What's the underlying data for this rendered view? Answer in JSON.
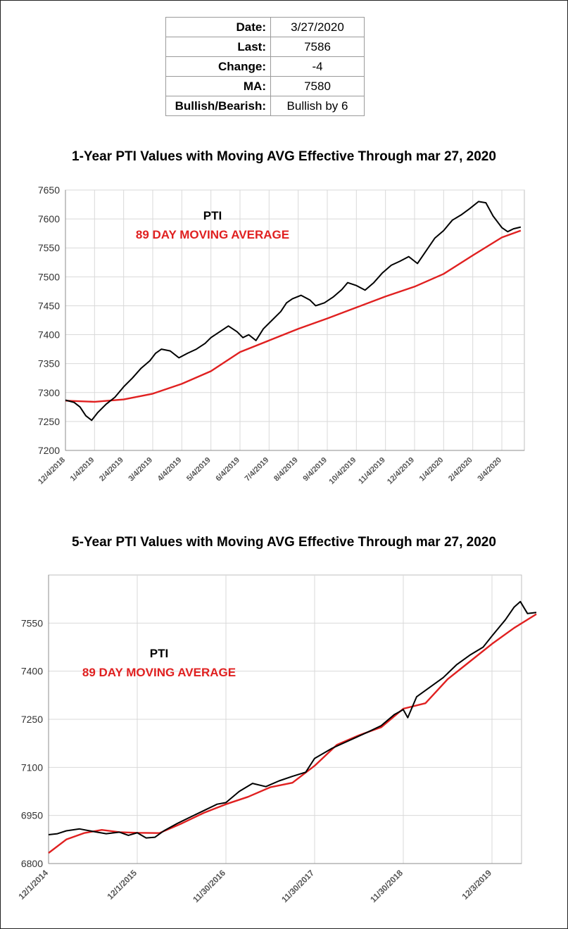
{
  "summary": [
    {
      "label": "Date:",
      "value": "3/27/2020"
    },
    {
      "label": "Last:",
      "value": "7586"
    },
    {
      "label": "Change:",
      "value": "-4"
    },
    {
      "label": "MA:",
      "value": "7580"
    },
    {
      "label": "Bullish/Bearish:",
      "value": "Bullish by 6"
    }
  ],
  "chart_data": [
    {
      "type": "line",
      "title": "1-Year PTI Values with Moving AVG Effective Through mar 27, 2020",
      "ylim": [
        7200,
        7650
      ],
      "y_ticks": [
        7200,
        7250,
        7300,
        7350,
        7400,
        7450,
        7500,
        7550,
        7600,
        7650
      ],
      "x_tick_labels": [
        "12/4/2018",
        "1/4/2019",
        "2/4/2019",
        "3/4/2019",
        "4/4/2019",
        "5/4/2019",
        "6/4/2019",
        "7/4/2019",
        "8/4/2019",
        "9/4/2019",
        "10/4/2019",
        "11/4/2019",
        "12/4/2019",
        "1/4/2020",
        "2/4/2020",
        "3/4/2020"
      ],
      "grid": true,
      "legend": [
        "PTI",
        "89 DAY MOVING AVERAGE"
      ],
      "legend_colors": [
        "#000000",
        "#e02020"
      ],
      "series": [
        {
          "name": "PTI",
          "color": "#000000",
          "points": [
            [
              0,
              7287
            ],
            [
              0.3,
              7283
            ],
            [
              0.5,
              7275
            ],
            [
              0.7,
              7260
            ],
            [
              0.9,
              7252
            ],
            [
              1.1,
              7265
            ],
            [
              1.4,
              7280
            ],
            [
              1.7,
              7292
            ],
            [
              2.0,
              7310
            ],
            [
              2.3,
              7325
            ],
            [
              2.6,
              7342
            ],
            [
              2.9,
              7355
            ],
            [
              3.1,
              7368
            ],
            [
              3.3,
              7375
            ],
            [
              3.6,
              7372
            ],
            [
              3.9,
              7360
            ],
            [
              4.2,
              7368
            ],
            [
              4.5,
              7375
            ],
            [
              4.8,
              7385
            ],
            [
              5.0,
              7395
            ],
            [
              5.3,
              7405
            ],
            [
              5.6,
              7415
            ],
            [
              5.9,
              7405
            ],
            [
              6.1,
              7395
            ],
            [
              6.3,
              7400
            ],
            [
              6.55,
              7390
            ],
            [
              6.8,
              7410
            ],
            [
              7.1,
              7425
            ],
            [
              7.4,
              7440
            ],
            [
              7.6,
              7455
            ],
            [
              7.8,
              7462
            ],
            [
              8.1,
              7468
            ],
            [
              8.4,
              7460
            ],
            [
              8.6,
              7450
            ],
            [
              8.9,
              7455
            ],
            [
              9.2,
              7465
            ],
            [
              9.5,
              7478
            ],
            [
              9.7,
              7490
            ],
            [
              10.0,
              7485
            ],
            [
              10.3,
              7477
            ],
            [
              10.6,
              7490
            ],
            [
              10.9,
              7507
            ],
            [
              11.2,
              7520
            ],
            [
              11.5,
              7527
            ],
            [
              11.8,
              7535
            ],
            [
              12.1,
              7523
            ],
            [
              12.4,
              7545
            ],
            [
              12.7,
              7567
            ],
            [
              13.0,
              7580
            ],
            [
              13.3,
              7598
            ],
            [
              13.6,
              7607
            ],
            [
              13.9,
              7618
            ],
            [
              14.2,
              7630
            ],
            [
              14.45,
              7628
            ],
            [
              14.7,
              7605
            ],
            [
              15.0,
              7585
            ],
            [
              15.2,
              7578
            ],
            [
              15.4,
              7583
            ],
            [
              15.65,
              7586
            ]
          ]
        },
        {
          "name": "89 DAY MOVING AVERAGE",
          "color": "#e02020",
          "points": [
            [
              0,
              7286
            ],
            [
              1,
              7284
            ],
            [
              2,
              7288
            ],
            [
              3,
              7298
            ],
            [
              4,
              7315
            ],
            [
              5,
              7337
            ],
            [
              6,
              7370
            ],
            [
              7,
              7390
            ],
            [
              8,
              7410
            ],
            [
              9,
              7428
            ],
            [
              10,
              7447
            ],
            [
              11,
              7466
            ],
            [
              12,
              7483
            ],
            [
              13,
              7505
            ],
            [
              14,
              7537
            ],
            [
              15,
              7568
            ],
            [
              15.65,
              7580
            ]
          ]
        }
      ]
    },
    {
      "type": "line",
      "title": "5-Year PTI Values with Moving AVG Effective Through mar 27, 2020",
      "ylim": [
        6800,
        7700
      ],
      "y_ticks": [
        6800,
        6950,
        7100,
        7250,
        7400,
        7550
      ],
      "x_tick_labels": [
        "12/1/2014",
        "12/1/2015",
        "11/30/2016",
        "11/30/2017",
        "11/30/2018",
        "12/3/2019"
      ],
      "grid": true,
      "legend": [
        "PTI",
        "89 DAY MOVING AVERAGE"
      ],
      "legend_colors": [
        "#000000",
        "#e02020"
      ],
      "series": [
        {
          "name": "PTI",
          "color": "#000000",
          "points": [
            [
              0,
              6890
            ],
            [
              0.1,
              6893
            ],
            [
              0.2,
              6902
            ],
            [
              0.35,
              6908
            ],
            [
              0.5,
              6900
            ],
            [
              0.65,
              6893
            ],
            [
              0.8,
              6898
            ],
            [
              0.9,
              6888
            ],
            [
              1.0,
              6896
            ],
            [
              1.1,
              6880
            ],
            [
              1.2,
              6882
            ],
            [
              1.3,
              6902
            ],
            [
              1.45,
              6925
            ],
            [
              1.6,
              6945
            ],
            [
              1.75,
              6965
            ],
            [
              1.9,
              6985
            ],
            [
              2.0,
              6990
            ],
            [
              2.15,
              7025
            ],
            [
              2.3,
              7050
            ],
            [
              2.45,
              7040
            ],
            [
              2.6,
              7058
            ],
            [
              2.75,
              7072
            ],
            [
              2.9,
              7085
            ],
            [
              3.0,
              7128
            ],
            [
              3.2,
              7160
            ],
            [
              3.4,
              7185
            ],
            [
              3.6,
              7210
            ],
            [
              3.75,
              7230
            ],
            [
              3.9,
              7265
            ],
            [
              4.0,
              7280
            ],
            [
              4.05,
              7255
            ],
            [
              4.15,
              7320
            ],
            [
              4.3,
              7350
            ],
            [
              4.45,
              7380
            ],
            [
              4.6,
              7420
            ],
            [
              4.75,
              7450
            ],
            [
              4.9,
              7475
            ],
            [
              5.0,
              7510
            ],
            [
              5.15,
              7560
            ],
            [
              5.25,
              7600
            ],
            [
              5.32,
              7617
            ],
            [
              5.4,
              7580
            ],
            [
              5.5,
              7583
            ]
          ]
        },
        {
          "name": "89 DAY MOVING AVERAGE",
          "color": "#e02020",
          "points": [
            [
              0,
              6833
            ],
            [
              0.2,
              6875
            ],
            [
              0.4,
              6895
            ],
            [
              0.6,
              6905
            ],
            [
              0.8,
              6898
            ],
            [
              1.0,
              6896
            ],
            [
              1.25,
              6895
            ],
            [
              1.5,
              6925
            ],
            [
              1.75,
              6958
            ],
            [
              2.0,
              6985
            ],
            [
              2.25,
              7008
            ],
            [
              2.5,
              7038
            ],
            [
              2.75,
              7052
            ],
            [
              3.0,
              7105
            ],
            [
              3.25,
              7170
            ],
            [
              3.5,
              7200
            ],
            [
              3.75,
              7225
            ],
            [
              4.0,
              7283
            ],
            [
              4.25,
              7300
            ],
            [
              4.5,
              7375
            ],
            [
              4.75,
              7430
            ],
            [
              5.0,
              7485
            ],
            [
              5.25,
              7535
            ],
            [
              5.5,
              7578
            ]
          ]
        }
      ]
    }
  ]
}
